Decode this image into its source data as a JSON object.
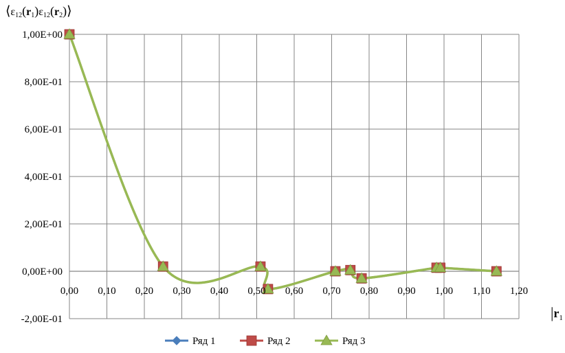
{
  "chart_data": {
    "type": "line",
    "title": "",
    "ylabel": {
      "open": "⟨",
      "eps": "ε",
      "sub": "12",
      "r": "r",
      "r1_sub": "1",
      "r2_sub": "2",
      "lp": "(",
      "rp": ")",
      "close": "⟩"
    },
    "xlabel": {
      "bar": "|",
      "r": "r",
      "sub": "1"
    },
    "xlim": [
      0,
      1.2
    ],
    "ylim": [
      -0.2,
      1.0
    ],
    "x_ticks": [
      "0,00",
      "0,10",
      "0,20",
      "0,30",
      "0,40",
      "0,50",
      "0,60",
      "0,70",
      "0,80",
      "0,90",
      "1,00",
      "1,10",
      "1,20"
    ],
    "y_ticks": [
      "1,00E+00",
      "8,00E-01",
      "6,00E-01",
      "4,00E-01",
      "2,00E-01",
      "0,00E+00",
      "-2,00E-01"
    ],
    "grid": true,
    "legend_position": "bottom",
    "colors": {
      "series1": "#4a7ebb",
      "series2": "#be4b48",
      "series3": "#98b954",
      "grid": "#868686"
    },
    "series": [
      {
        "name": "Ряд 1",
        "marker": "diamond",
        "x": [
          0.0,
          0.25,
          0.51,
          0.53,
          0.71,
          0.75,
          0.78,
          0.98,
          0.99,
          1.14
        ],
        "y": [
          1.0,
          0.02,
          0.02,
          -0.075,
          0.0,
          0.005,
          -0.03,
          0.015,
          0.015,
          0.0
        ]
      },
      {
        "name": "Ряд 2",
        "marker": "square",
        "x": [
          0.0,
          0.25,
          0.51,
          0.53,
          0.71,
          0.75,
          0.78,
          0.98,
          0.99,
          1.14
        ],
        "y": [
          1.0,
          0.02,
          0.02,
          -0.075,
          0.0,
          0.005,
          -0.03,
          0.015,
          0.015,
          0.0
        ]
      },
      {
        "name": "Ряд 3",
        "marker": "triangle",
        "x": [
          0.0,
          0.25,
          0.51,
          0.53,
          0.71,
          0.75,
          0.78,
          0.98,
          0.99,
          1.14
        ],
        "y": [
          1.0,
          0.02,
          0.02,
          -0.075,
          0.0,
          0.005,
          -0.03,
          0.015,
          0.015,
          0.0
        ]
      }
    ]
  }
}
